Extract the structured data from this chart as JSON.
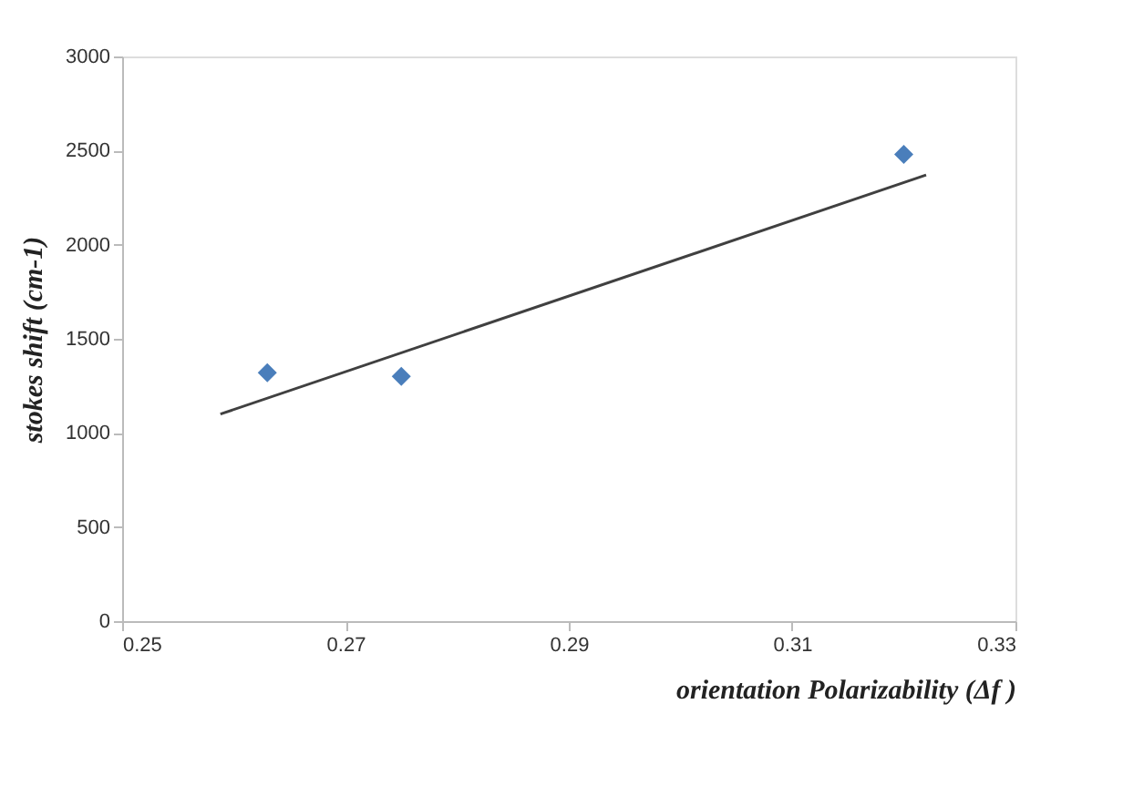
{
  "chart_data": {
    "type": "scatter",
    "xlabel": "orientation   Polarizability  (Δf )",
    "ylabel": "stokes shift (cm-1)",
    "xlim": [
      0.25,
      0.33
    ],
    "xticks": [
      0.25,
      0.27,
      0.29,
      0.31,
      0.33
    ],
    "ylim": [
      0,
      3000
    ],
    "yticks": [
      0,
      500,
      1000,
      1500,
      2000,
      2500,
      3000
    ],
    "grid": false,
    "series": [
      {
        "color": "#4a7ebb",
        "marker": "diamond",
        "x": [
          0.263,
          0.275,
          0.32
        ],
        "values": [
          1320,
          1300,
          2480
        ]
      },
      {
        "type": "line",
        "color": "#404040",
        "marker": "none",
        "line_style": "solid",
        "x": [
          0.2588,
          0.322
        ],
        "values": [
          1100,
          2370
        ]
      }
    ]
  }
}
